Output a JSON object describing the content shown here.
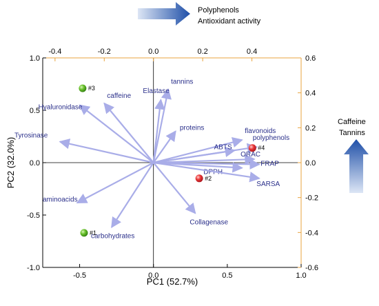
{
  "chart_data": {
    "type": "scatter",
    "subtype": "pca-biplot",
    "title": "",
    "xlabel": "PC1 (52.7%)",
    "ylabel": "PC2 (32.0%)",
    "xlim": [
      -0.75,
      1.0
    ],
    "ylim": [
      -1.0,
      1.0
    ],
    "x_ticks": [
      "-0.5",
      "0.0",
      "0.5",
      "1.0"
    ],
    "y_ticks": [
      "-1.0",
      "-0.5",
      "0.0",
      "0.5",
      "1.0"
    ],
    "top_xlim": [
      -0.45,
      0.6
    ],
    "right_ylim": [
      -0.6,
      0.6
    ],
    "top_ticks": [
      "-0.4",
      "-0.2",
      "0.0",
      "0.2",
      "0.4"
    ],
    "right_ticks": [
      "0.6",
      "0.4",
      "0.2",
      "0.0",
      "-0.2",
      "-0.4",
      "-0.6"
    ],
    "grid": false,
    "loadings": [
      {
        "name": "tannins",
        "x": 0.06,
        "y": 0.42
      },
      {
        "name": "Elastase",
        "x": 0.03,
        "y": 0.36
      },
      {
        "name": "caffeine",
        "x": -0.2,
        "y": 0.34
      },
      {
        "name": "Hyaluronidase",
        "x": -0.3,
        "y": 0.33
      },
      {
        "name": "proteins",
        "x": 0.09,
        "y": 0.18
      },
      {
        "name": "Tyrosinase",
        "x": -0.38,
        "y": 0.12
      },
      {
        "name": "flavonoids",
        "x": 0.36,
        "y": 0.13
      },
      {
        "name": "polyphenols",
        "x": 0.42,
        "y": 0.09
      },
      {
        "name": "ABTS",
        "x": 0.33,
        "y": 0.07
      },
      {
        "name": "ORAC",
        "x": 0.41,
        "y": 0.02
      },
      {
        "name": "FRAP",
        "x": 0.43,
        "y": -0.01
      },
      {
        "name": "DPPH",
        "x": 0.36,
        "y": -0.03
      },
      {
        "name": "SARSA",
        "x": 0.43,
        "y": -0.09
      },
      {
        "name": "Collagenase",
        "x": 0.17,
        "y": -0.29
      },
      {
        "name": "aminoacids",
        "x": -0.31,
        "y": -0.23
      },
      {
        "name": "carbohydrates",
        "x": -0.17,
        "y": -0.37
      }
    ],
    "samples": [
      {
        "name": "#1",
        "x": -0.47,
        "y": -0.67,
        "color": "#4caf1e"
      },
      {
        "name": "#2",
        "x": 0.31,
        "y": -0.15,
        "color": "#e8242a"
      },
      {
        "name": "#3",
        "x": -0.48,
        "y": 0.71,
        "color": "#4caf1e"
      },
      {
        "name": "#4",
        "x": 0.67,
        "y": 0.14,
        "color": "#e8242a"
      }
    ],
    "colors": {
      "arrow": "#a9ade8",
      "variable_label": "#2a2f8a",
      "secondary_axis": "#e8a33d",
      "direction_arrow": "#2a5fb8"
    }
  },
  "annotations": {
    "top": {
      "line1": "Polyphenols",
      "line2": "Antioxidant activity"
    },
    "right": {
      "line1": "Caffeine",
      "line2": "Tannins"
    }
  }
}
